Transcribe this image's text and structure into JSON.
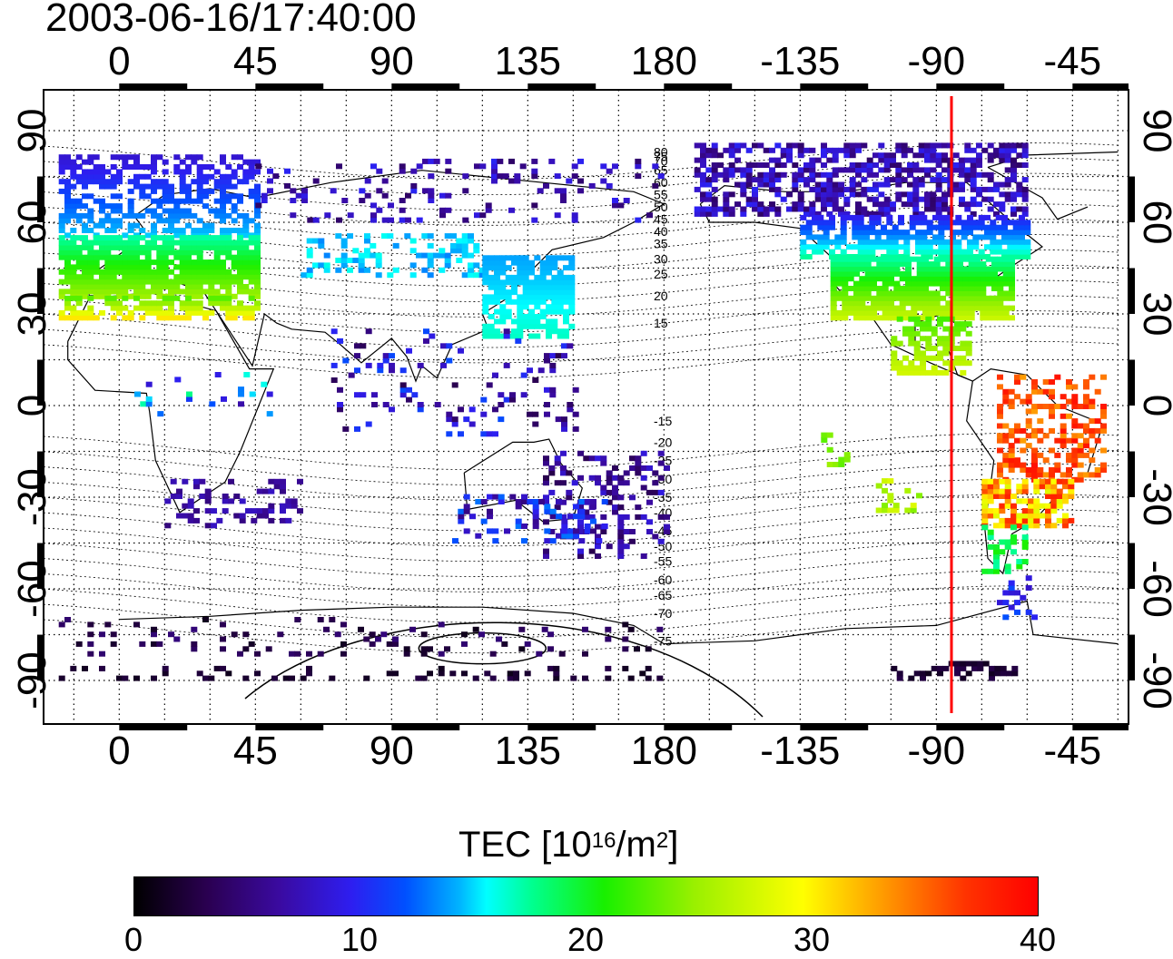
{
  "title": "2003-06-16/17:40:00",
  "lon_ticks": [
    "0",
    "45",
    "90",
    "135",
    "180",
    "-135",
    "-90",
    "-45"
  ],
  "lat_ticks": [
    "90",
    "60",
    "30",
    "0",
    "-30",
    "-60",
    "-90"
  ],
  "contour_labels": [
    "80",
    "75",
    "70",
    "65",
    "60",
    "55",
    "50",
    "45",
    "40",
    "35",
    "30",
    "25",
    "20",
    "15",
    "-15",
    "-20",
    "-25",
    "-30",
    "-35",
    "-40",
    "-45",
    "-50",
    "-55",
    "-60",
    "-65",
    "-70",
    "-75"
  ],
  "terminator_longitude": -85,
  "terminator_color": "#ff0000",
  "colorbar": {
    "title": "TEC  [10",
    "title_exp": "16",
    "title_unit": "/m",
    "title_unit_exp": "2",
    "title_close": "]",
    "min": 0,
    "max": 40,
    "labels": [
      "0",
      "10",
      "20",
      "30",
      "40"
    ],
    "colormap": [
      "#000000",
      "#3a0aa0",
      "#0050ff",
      "#00ffff",
      "#18f000",
      "#ffff00",
      "#ff0000"
    ]
  }
}
